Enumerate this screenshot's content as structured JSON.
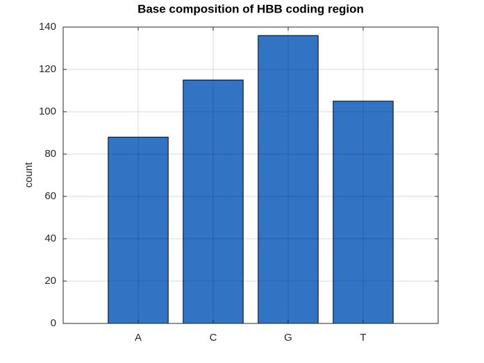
{
  "chart_data": {
    "type": "bar",
    "title": "Base composition of HBB coding region",
    "ylabel": "count",
    "categories": [
      "A",
      "C",
      "G",
      "T"
    ],
    "values": [
      88,
      115,
      136,
      105
    ],
    "color": "#3273c4",
    "ylim": [
      0,
      140
    ],
    "yticks": [
      0,
      20,
      40,
      60,
      80,
      100,
      120,
      140
    ],
    "grid": true
  }
}
